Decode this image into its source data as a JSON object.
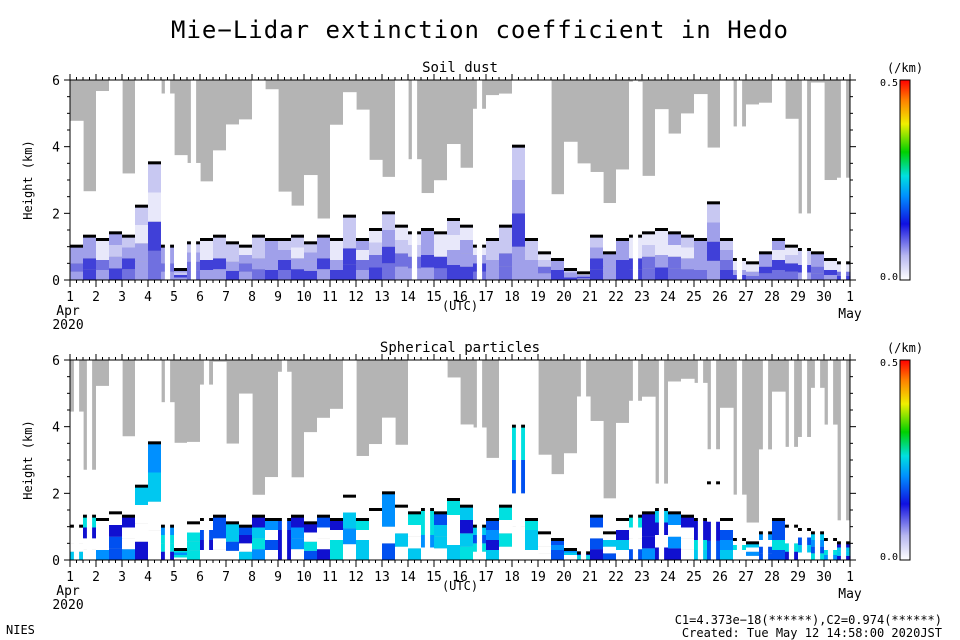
{
  "title": "Mie−Lidar extinction coefficient in Hedo",
  "chart_data": [
    {
      "type": "heatmap",
      "title": "Soil dust",
      "ylabel": "Height (km)",
      "xlabel": "(UTC)",
      "x_start_label": "Apr",
      "x_start_year": "2020",
      "x_end_label": "May",
      "x_ticks": [
        "1",
        "2",
        "3",
        "4",
        "5",
        "6",
        "7",
        "8",
        "9",
        "10",
        "11",
        "12",
        "13",
        "14",
        "15",
        "16",
        "17",
        "18",
        "19",
        "20",
        "21",
        "22",
        "23",
        "24",
        "25",
        "26",
        "27",
        "28",
        "29",
        "30",
        "1"
      ],
      "xlim": [
        "2020-04-01",
        "2020-05-01"
      ],
      "ylim": [
        0,
        6
      ],
      "y_ticks": [
        "0",
        "2",
        "4",
        "6"
      ],
      "colorbar": {
        "unit": "(/km)",
        "min_label": "0.0",
        "max_label": "0.5",
        "range": [
          0,
          0.5
        ]
      },
      "cloud_top_km": [
        1.0,
        1.3,
        1.2,
        1.4,
        1.3,
        2.2,
        3.5,
        1.0,
        0.3,
        1.1,
        1.2,
        1.3,
        1.1,
        1.0,
        1.3,
        1.2,
        1.2,
        1.3,
        1.1,
        1.3,
        1.2,
        1.9,
        1.2,
        1.5,
        2.0,
        1.6,
        1.4,
        1.5,
        1.4,
        1.8,
        1.6,
        1.0,
        1.2,
        1.6,
        4.0,
        1.2,
        0.8,
        0.6,
        0.3,
        0.2,
        1.3,
        0.8,
        1.2,
        1.3,
        1.4,
        1.5,
        1.4,
        1.3,
        1.2,
        2.3,
        1.2,
        0.6,
        0.5,
        0.8,
        1.2,
        1.0,
        0.9,
        0.8,
        0.6,
        0.5
      ]
    },
    {
      "type": "heatmap",
      "title": "Spherical particles",
      "ylabel": "Height (km)",
      "xlabel": "(UTC)",
      "x_start_label": "Apr",
      "x_start_year": "2020",
      "x_end_label": "May",
      "x_ticks": [
        "1",
        "2",
        "3",
        "4",
        "5",
        "6",
        "7",
        "8",
        "9",
        "10",
        "11",
        "12",
        "13",
        "14",
        "15",
        "16",
        "17",
        "18",
        "19",
        "20",
        "21",
        "22",
        "23",
        "24",
        "25",
        "26",
        "27",
        "28",
        "29",
        "30",
        "1"
      ],
      "xlim": [
        "2020-04-01",
        "2020-05-01"
      ],
      "ylim": [
        0,
        6
      ],
      "y_ticks": [
        "0",
        "2",
        "4",
        "6"
      ],
      "colorbar": {
        "unit": "(/km)",
        "min_label": "0.0",
        "max_label": "0.5",
        "range": [
          0,
          0.5
        ]
      },
      "cloud_top_km": [
        1.0,
        1.3,
        1.2,
        1.4,
        1.3,
        2.2,
        3.5,
        1.0,
        0.3,
        1.1,
        1.2,
        1.3,
        1.1,
        1.0,
        1.3,
        1.2,
        1.2,
        1.3,
        1.1,
        1.3,
        1.2,
        1.9,
        1.2,
        1.5,
        2.0,
        1.6,
        1.4,
        1.5,
        1.4,
        1.8,
        1.6,
        1.0,
        1.2,
        1.6,
        4.0,
        1.2,
        0.8,
        0.6,
        0.3,
        0.2,
        1.3,
        0.8,
        1.2,
        1.3,
        1.4,
        1.5,
        1.4,
        1.3,
        1.2,
        2.3,
        1.2,
        0.6,
        0.5,
        0.8,
        1.2,
        1.0,
        0.9,
        0.8,
        0.6,
        0.5
      ]
    }
  ],
  "footer": {
    "org": "NIES",
    "constants": "C1=4.373e−18(******),C2=0.974(******)",
    "created": "Created: Tue May 12 14:58:00 2020JST"
  }
}
